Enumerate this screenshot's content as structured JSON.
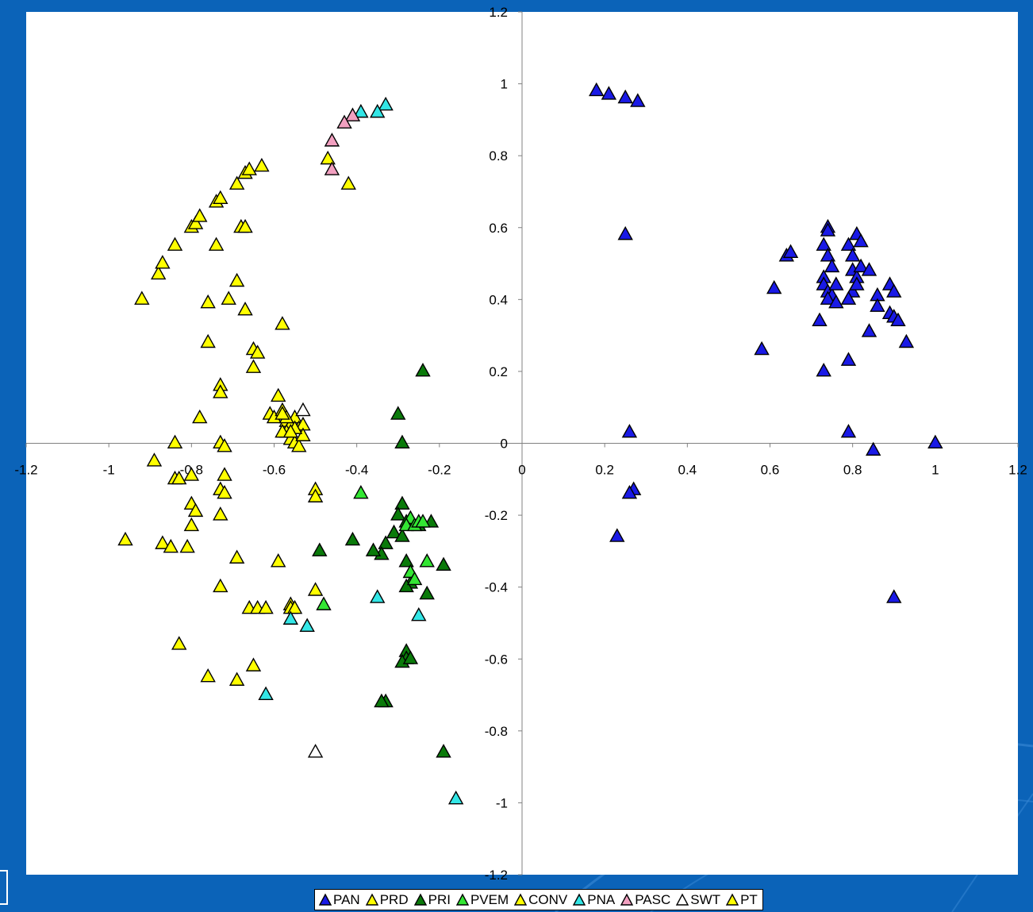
{
  "chart_data": {
    "type": "scatter",
    "title": "",
    "xlabel": "",
    "ylabel": "",
    "xlim": [
      -1.2,
      1.2
    ],
    "ylim": [
      -1.2,
      1.2
    ],
    "x_ticks": [
      -1.2,
      -1,
      -0.8,
      -0.6,
      -0.4,
      -0.2,
      0,
      0.2,
      0.4,
      0.6,
      0.8,
      1,
      1.2
    ],
    "y_ticks": [
      -1.2,
      -1,
      -0.8,
      -0.6,
      -0.4,
      -0.2,
      0,
      0.2,
      0.4,
      0.6,
      0.8,
      1,
      1.2
    ],
    "x_tick_labels": [
      "-1.2",
      "-1",
      "-0.8",
      "-0.6",
      "-0.4",
      "-0.2",
      "0",
      "0.2",
      "0.4",
      "0.6",
      "0.8",
      "1",
      "1.2"
    ],
    "y_tick_labels": [
      "-1.2",
      "-1",
      "-0.8",
      "-0.6",
      "-0.4",
      "-0.2",
      "0",
      "0.2",
      "0.4",
      "0.6",
      "0.8",
      "1",
      "1.2"
    ],
    "grid": false,
    "legend_position": "bottom",
    "marker": "triangle",
    "series": [
      {
        "name": "PAN",
        "color": "#1a1ae6",
        "points": [
          [
            0.18,
            0.98
          ],
          [
            0.21,
            0.97
          ],
          [
            0.25,
            0.96
          ],
          [
            0.28,
            0.95
          ],
          [
            0.25,
            0.58
          ],
          [
            0.26,
            0.03
          ],
          [
            0.27,
            -0.13
          ],
          [
            0.26,
            -0.14
          ],
          [
            0.23,
            -0.26
          ],
          [
            0.9,
            -0.43
          ],
          [
            1.0,
            0.0
          ],
          [
            0.85,
            -0.02
          ],
          [
            0.79,
            0.03
          ],
          [
            0.58,
            0.26
          ],
          [
            0.61,
            0.43
          ],
          [
            0.64,
            0.52
          ],
          [
            0.65,
            0.53
          ],
          [
            0.72,
            0.34
          ],
          [
            0.73,
            0.2
          ],
          [
            0.74,
            0.6
          ],
          [
            0.74,
            0.59
          ],
          [
            0.73,
            0.55
          ],
          [
            0.74,
            0.52
          ],
          [
            0.75,
            0.49
          ],
          [
            0.73,
            0.46
          ],
          [
            0.73,
            0.44
          ],
          [
            0.74,
            0.42
          ],
          [
            0.75,
            0.41
          ],
          [
            0.74,
            0.4
          ],
          [
            0.76,
            0.39
          ],
          [
            0.76,
            0.44
          ],
          [
            0.79,
            0.55
          ],
          [
            0.8,
            0.52
          ],
          [
            0.81,
            0.58
          ],
          [
            0.82,
            0.56
          ],
          [
            0.8,
            0.48
          ],
          [
            0.81,
            0.46
          ],
          [
            0.8,
            0.42
          ],
          [
            0.81,
            0.44
          ],
          [
            0.79,
            0.4
          ],
          [
            0.82,
            0.49
          ],
          [
            0.84,
            0.48
          ],
          [
            0.86,
            0.41
          ],
          [
            0.86,
            0.38
          ],
          [
            0.84,
            0.31
          ],
          [
            0.79,
            0.23
          ],
          [
            0.89,
            0.44
          ],
          [
            0.9,
            0.42
          ],
          [
            0.89,
            0.36
          ],
          [
            0.9,
            0.35
          ],
          [
            0.91,
            0.34
          ],
          [
            0.93,
            0.28
          ]
        ]
      },
      {
        "name": "PRD",
        "color": "#ffff00",
        "points": [
          [
            -0.92,
            0.4
          ],
          [
            -0.88,
            0.47
          ],
          [
            -0.87,
            0.5
          ],
          [
            -0.84,
            0.55
          ],
          [
            -0.8,
            0.6
          ],
          [
            -0.79,
            0.61
          ],
          [
            -0.78,
            0.63
          ],
          [
            -0.74,
            0.67
          ],
          [
            -0.73,
            0.68
          ],
          [
            -0.69,
            0.72
          ],
          [
            -0.67,
            0.75
          ],
          [
            -0.66,
            0.76
          ],
          [
            -0.63,
            0.77
          ],
          [
            -0.74,
            0.55
          ],
          [
            -0.68,
            0.6
          ],
          [
            -0.67,
            0.6
          ],
          [
            -0.69,
            0.45
          ],
          [
            -0.71,
            0.4
          ],
          [
            -0.67,
            0.37
          ],
          [
            -0.76,
            0.39
          ],
          [
            -0.76,
            0.28
          ],
          [
            -0.65,
            0.26
          ],
          [
            -0.64,
            0.25
          ],
          [
            -0.65,
            0.21
          ],
          [
            -0.58,
            0.33
          ],
          [
            -0.73,
            0.16
          ],
          [
            -0.73,
            0.14
          ],
          [
            -0.78,
            0.07
          ],
          [
            -0.84,
            0.0
          ],
          [
            -0.73,
            0.0
          ],
          [
            -0.72,
            -0.01
          ],
          [
            -0.89,
            -0.05
          ],
          [
            -0.84,
            -0.1
          ],
          [
            -0.83,
            -0.1
          ],
          [
            -0.8,
            -0.09
          ],
          [
            -0.72,
            -0.09
          ],
          [
            -0.73,
            -0.13
          ],
          [
            -0.72,
            -0.14
          ],
          [
            -0.8,
            -0.17
          ],
          [
            -0.79,
            -0.19
          ],
          [
            -0.8,
            -0.23
          ],
          [
            -0.73,
            -0.2
          ],
          [
            -0.96,
            -0.27
          ],
          [
            -0.87,
            -0.28
          ],
          [
            -0.85,
            -0.29
          ],
          [
            -0.81,
            -0.29
          ],
          [
            -0.69,
            -0.32
          ],
          [
            -0.73,
            -0.4
          ],
          [
            -0.59,
            -0.33
          ],
          [
            -0.5,
            -0.13
          ],
          [
            -0.5,
            -0.15
          ],
          [
            -0.5,
            -0.41
          ],
          [
            -0.66,
            -0.46
          ],
          [
            -0.64,
            -0.46
          ],
          [
            -0.62,
            -0.46
          ],
          [
            -0.56,
            -0.45
          ],
          [
            -0.56,
            -0.46
          ],
          [
            -0.55,
            -0.46
          ],
          [
            -0.83,
            -0.56
          ],
          [
            -0.76,
            -0.65
          ],
          [
            -0.69,
            -0.66
          ],
          [
            -0.65,
            -0.62
          ],
          [
            -0.61,
            0.08
          ],
          [
            -0.6,
            0.07
          ],
          [
            -0.59,
            0.13
          ],
          [
            -0.58,
            0.09
          ],
          [
            -0.57,
            0.06
          ],
          [
            -0.56,
            0.05
          ],
          [
            -0.55,
            0.07
          ],
          [
            -0.54,
            0.04
          ],
          [
            -0.53,
            0.05
          ],
          [
            -0.57,
            0.03
          ],
          [
            -0.56,
            0.01
          ],
          [
            -0.55,
            0.0
          ],
          [
            -0.54,
            -0.01
          ],
          [
            -0.58,
            0.03
          ],
          [
            -0.53,
            0.02
          ],
          [
            -0.47,
            0.79
          ],
          [
            -0.42,
            0.72
          ]
        ]
      },
      {
        "name": "PRI",
        "color": "#0a7a0a",
        "points": [
          [
            -0.24,
            0.2
          ],
          [
            -0.3,
            0.08
          ],
          [
            -0.29,
            0.0
          ],
          [
            -0.29,
            -0.17
          ],
          [
            -0.3,
            -0.2
          ],
          [
            -0.28,
            -0.22
          ],
          [
            -0.31,
            -0.25
          ],
          [
            -0.29,
            -0.26
          ],
          [
            -0.33,
            -0.28
          ],
          [
            -0.34,
            -0.31
          ],
          [
            -0.36,
            -0.3
          ],
          [
            -0.41,
            -0.27
          ],
          [
            -0.49,
            -0.3
          ],
          [
            -0.28,
            -0.33
          ],
          [
            -0.27,
            -0.36
          ],
          [
            -0.27,
            -0.39
          ],
          [
            -0.28,
            -0.4
          ],
          [
            -0.23,
            -0.42
          ],
          [
            -0.19,
            -0.34
          ],
          [
            -0.22,
            -0.22
          ],
          [
            -0.25,
            -0.23
          ],
          [
            -0.28,
            -0.58
          ],
          [
            -0.28,
            -0.6
          ],
          [
            -0.29,
            -0.61
          ],
          [
            -0.27,
            -0.6
          ],
          [
            -0.33,
            -0.72
          ],
          [
            -0.34,
            -0.72
          ],
          [
            -0.19,
            -0.86
          ]
        ]
      },
      {
        "name": "PVEM",
        "color": "#33e633",
        "points": [
          [
            -0.39,
            -0.14
          ],
          [
            -0.27,
            -0.21
          ],
          [
            -0.28,
            -0.23
          ],
          [
            -0.26,
            -0.23
          ],
          [
            -0.25,
            -0.22
          ],
          [
            -0.24,
            -0.22
          ],
          [
            -0.27,
            -0.36
          ],
          [
            -0.26,
            -0.38
          ],
          [
            -0.23,
            -0.33
          ],
          [
            -0.48,
            -0.45
          ]
        ]
      },
      {
        "name": "CONV",
        "color": "#ffff00",
        "points": [
          [
            -0.55,
            0.04
          ],
          [
            -0.57,
            0.07
          ]
        ]
      },
      {
        "name": "PNA",
        "color": "#33e6e6",
        "points": [
          [
            -0.33,
            0.94
          ],
          [
            -0.35,
            0.92
          ],
          [
            -0.39,
            0.92
          ],
          [
            -0.35,
            -0.43
          ],
          [
            -0.25,
            -0.48
          ],
          [
            -0.56,
            -0.49
          ],
          [
            -0.52,
            -0.51
          ],
          [
            -0.62,
            -0.7
          ],
          [
            -0.16,
            -0.99
          ]
        ]
      },
      {
        "name": "PASC",
        "color": "#f2a0c0",
        "points": [
          [
            -0.41,
            0.91
          ],
          [
            -0.43,
            0.89
          ],
          [
            -0.46,
            0.84
          ],
          [
            -0.46,
            0.76
          ]
        ]
      },
      {
        "name": "SWT",
        "color": "#ffffff",
        "points": [
          [
            -0.53,
            0.09
          ],
          [
            -0.5,
            -0.86
          ]
        ]
      },
      {
        "name": "PT",
        "color": "#ffff00",
        "points": [
          [
            -0.58,
            0.08
          ],
          [
            -0.56,
            0.03
          ]
        ]
      }
    ]
  }
}
